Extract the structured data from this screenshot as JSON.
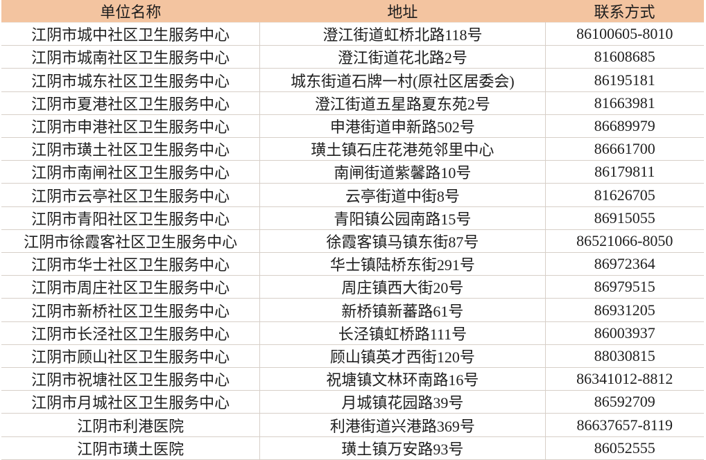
{
  "page": {
    "background": "#FFFFFF"
  },
  "table": {
    "columns": [
      "单位名称",
      "地址",
      "联系方式"
    ],
    "rows": [
      [
        "江阴市城中社区卫生服务中心",
        "澄江街道虹桥北路118号",
        "86100605-8010"
      ],
      [
        "江阴市城南社区卫生服务中心",
        "澄江街道花北路2号",
        "81608685"
      ],
      [
        "江阴市城东社区卫生服务中心",
        "城东街道石牌一村(原社区居委会)",
        "86195181"
      ],
      [
        "江阴市夏港社区卫生服务中心",
        "澄江街道五星路夏东苑2号",
        "81663981"
      ],
      [
        "江阴市申港社区卫生服务中心",
        "申港街道申新路502号",
        "86689979"
      ],
      [
        "江阴市璜土社区卫生服务中心",
        "璜土镇石庄花港苑邻里中心",
        "86661700"
      ],
      [
        "江阴市南闸社区卫生服务中心",
        "南闸街道紫馨路10号",
        "86179811"
      ],
      [
        "江阴市云亭社区卫生服务中心",
        "云亭街道中街8号",
        "81626705"
      ],
      [
        "江阴市青阳社区卫生服务中心",
        "青阳镇公园南路15号",
        "86915055"
      ],
      [
        "江阴市徐霞客社区卫生服务中心",
        "徐霞客镇马镇东街87号",
        "86521066-8050"
      ],
      [
        "江阴市华士社区卫生服务中心",
        "华士镇陆桥东街291号",
        "86972364"
      ],
      [
        "江阴市周庄社区卫生服务中心",
        "周庄镇西大街20号",
        "86979515"
      ],
      [
        "江阴市新桥社区卫生服务中心",
        "新桥镇新蕃路61号",
        "86931205"
      ],
      [
        "江阴市长泾社区卫生服务中心",
        "长泾镇虹桥路111号",
        "86003937"
      ],
      [
        "江阴市顾山社区卫生服务中心",
        "顾山镇英才西街120号",
        "88030815"
      ],
      [
        "江阴市祝塘社区卫生服务中心",
        "祝塘镇文林环南路16号",
        "86341012-8812"
      ],
      [
        "江阴市月城社区卫生服务中心",
        "月城镇花园路39号",
        "86592709"
      ],
      [
        "江阴市利港医院",
        "利港街道兴港路369号",
        "86637657-8119"
      ],
      [
        "江阴市璜土医院",
        "璜土镇万安路93号",
        "86052555"
      ]
    ],
    "colors": {
      "header_bg": "#F3C4A0",
      "row_bg": "#FFFFFF",
      "border": "#D7CFC8",
      "text": "#1E1E1E"
    }
  }
}
